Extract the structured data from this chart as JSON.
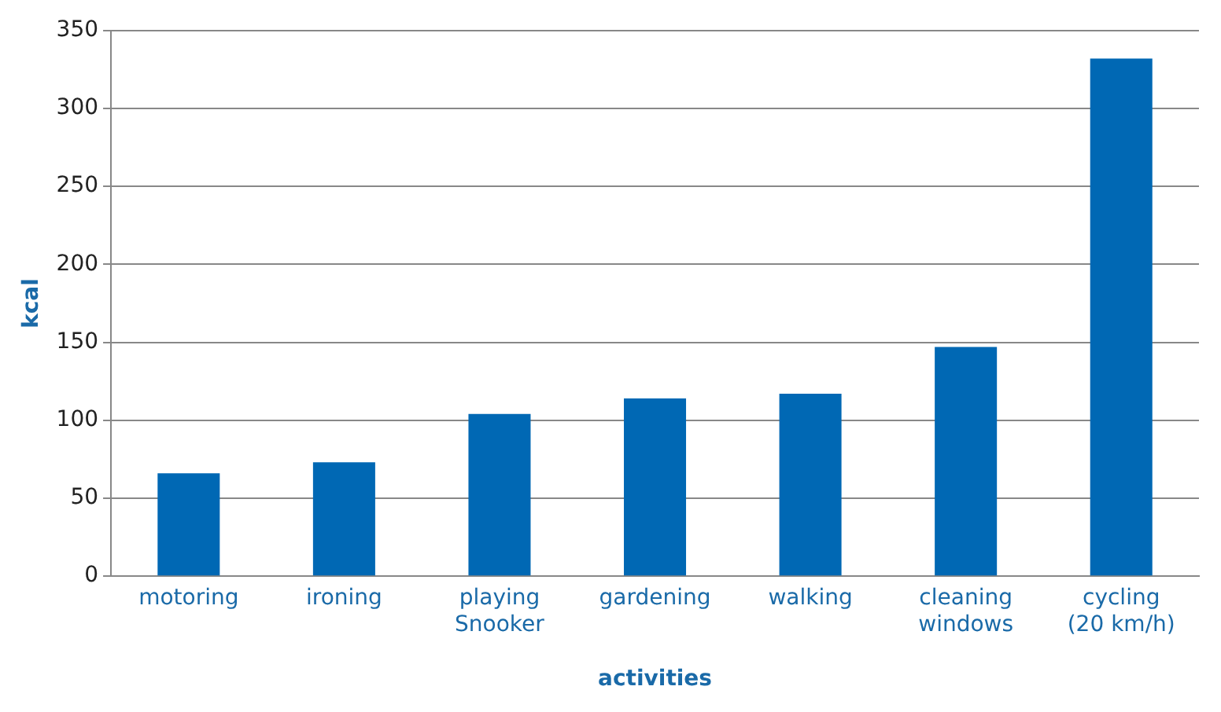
{
  "chart_data": {
    "type": "bar",
    "xlabel": "activities",
    "ylabel": "kcal",
    "categories": [
      "motoring",
      "ironing",
      "playing Snooker",
      "gardening",
      "walking",
      "cleaning windows",
      "cycling (20 km/h)"
    ],
    "values": [
      66,
      73,
      104,
      114,
      117,
      147,
      332
    ],
    "color": "#0068b4",
    "ylim": [
      0,
      350
    ],
    "yticks": [
      0,
      50,
      100,
      150,
      200,
      250,
      300,
      350
    ],
    "grid": "y",
    "legend": false
  }
}
